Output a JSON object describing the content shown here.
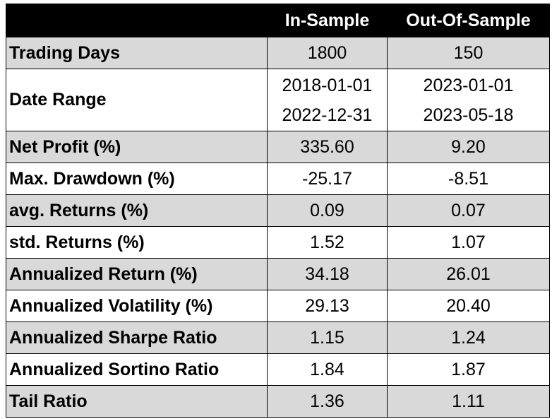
{
  "table": {
    "columns": [
      "In-Sample",
      "Out-Of-Sample"
    ],
    "rows": [
      {
        "label": "Trading Days",
        "values": [
          "1800",
          "150"
        ]
      },
      {
        "label": "Date Range",
        "values": [
          [
            "2018-01-01",
            "2022-12-31"
          ],
          [
            "2023-01-01",
            "2023-05-18"
          ]
        ]
      },
      {
        "label": "Net Profit (%)",
        "values": [
          "335.60",
          "9.20"
        ]
      },
      {
        "label": "Max. Drawdown (%)",
        "values": [
          "-25.17",
          "-8.51"
        ]
      },
      {
        "label": "avg. Returns (%)",
        "values": [
          "0.09",
          "0.07"
        ]
      },
      {
        "label": "std. Returns (%)",
        "values": [
          "1.52",
          "1.07"
        ]
      },
      {
        "label": "Annualized Return (%)",
        "values": [
          "34.18",
          "26.01"
        ]
      },
      {
        "label": "Annualized Volatility (%)",
        "values": [
          "29.13",
          "20.40"
        ]
      },
      {
        "label": "Annualized Sharpe Ratio",
        "values": [
          "1.15",
          "1.24"
        ]
      },
      {
        "label": "Annualized Sortino Ratio",
        "values": [
          "1.84",
          "1.87"
        ]
      },
      {
        "label": "Tail Ratio",
        "values": [
          "1.36",
          "1.11"
        ]
      }
    ]
  }
}
